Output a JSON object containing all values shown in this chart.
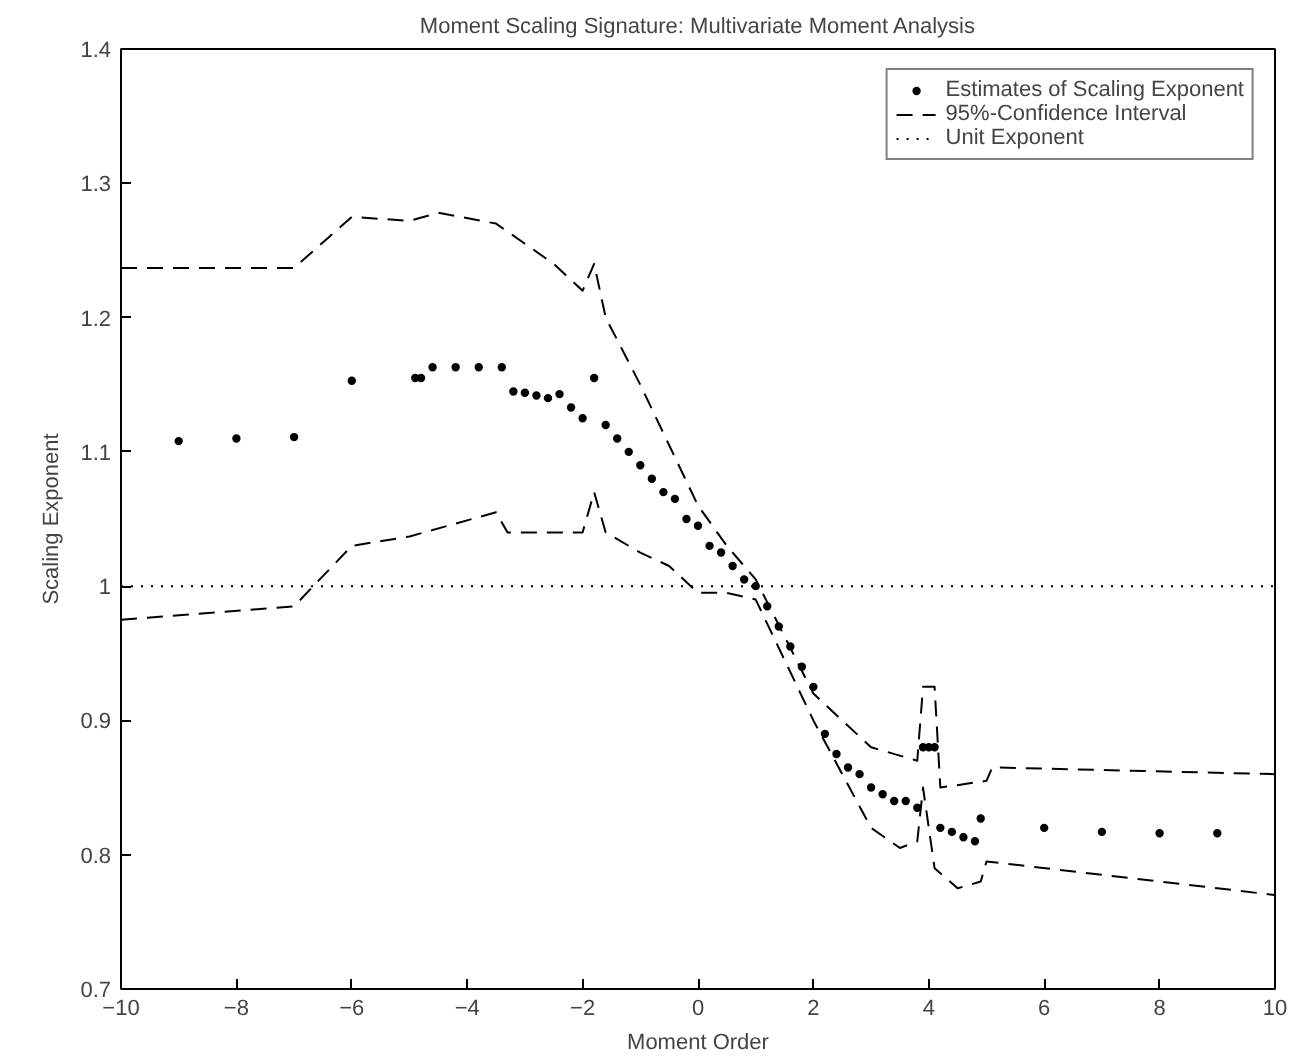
{
  "chart_data": {
    "type": "line",
    "title": "Moment Scaling Signature: Multivariate Moment Analysis",
    "xlabel": "Moment Order",
    "ylabel": "Scaling Exponent",
    "xlim": [
      -10,
      10
    ],
    "ylim": [
      0.7,
      1.4
    ],
    "xticks": [
      -10,
      -8,
      -6,
      -4,
      -2,
      0,
      2,
      4,
      6,
      8,
      10
    ],
    "yticks": [
      0.7,
      0.8,
      0.9,
      1,
      1.1,
      1.2,
      1.3,
      1.4
    ],
    "grid": false,
    "legend": "top right",
    "series": [
      {
        "name": "Estimates of Scaling Exponent",
        "type": "scatter",
        "marker": "circle",
        "color": "#000000",
        "x": [
          -9,
          -8,
          -7,
          -6,
          -4.9,
          -4.8,
          -4.6,
          -4.2,
          -3.8,
          -3.4,
          -3.2,
          -3.0,
          -2.8,
          -2.6,
          -2.4,
          -2.2,
          -2.0,
          -1.8,
          -1.6,
          -1.4,
          -1.2,
          -1.0,
          -0.8,
          -0.6,
          -0.4,
          -0.2,
          0,
          0.2,
          0.4,
          0.6,
          0.8,
          1.0,
          1.2,
          1.4,
          1.6,
          1.8,
          2.0,
          2.2,
          2.4,
          2.6,
          2.8,
          3.0,
          3.2,
          3.4,
          3.6,
          3.8,
          3.9,
          4.0,
          4.1,
          4.2,
          4.4,
          4.6,
          4.8,
          4.9,
          6,
          7,
          8,
          9
        ],
        "values": [
          1.108,
          1.11,
          1.111,
          1.153,
          1.155,
          1.155,
          1.163,
          1.163,
          1.163,
          1.163,
          1.145,
          1.144,
          1.142,
          1.14,
          1.143,
          1.133,
          1.125,
          1.155,
          1.12,
          1.11,
          1.1,
          1.09,
          1.08,
          1.07,
          1.065,
          1.05,
          1.045,
          1.03,
          1.025,
          1.015,
          1.005,
          1.0,
          0.985,
          0.97,
          0.955,
          0.94,
          0.925,
          0.89,
          0.875,
          0.865,
          0.86,
          0.85,
          0.845,
          0.84,
          0.84,
          0.835,
          0.88,
          0.88,
          0.88,
          0.82,
          0.817,
          0.813,
          0.81,
          0.827,
          0.82,
          0.817,
          0.816,
          0.816
        ]
      },
      {
        "name": "95%-Confidence Interval",
        "line_style": "dashed",
        "color": "#000000",
        "x": [
          -10,
          -7,
          -6,
          -5,
          -4.5,
          -3.5,
          -3,
          -2.5,
          -2,
          -1.8,
          -1.6,
          -1,
          0,
          0.5,
          1,
          2,
          3,
          3.8,
          3.9,
          4.1,
          4.2,
          5,
          5.1,
          10
        ],
        "values": [
          1.237,
          1.237,
          1.275,
          1.272,
          1.278,
          1.27,
          1.255,
          1.24,
          1.22,
          1.24,
          1.2,
          1.15,
          1.06,
          1.03,
          1.005,
          0.92,
          0.88,
          0.87,
          0.925,
          0.925,
          0.85,
          0.855,
          0.865,
          0.86
        ]
      },
      {
        "type": "line",
        "line_style": "dashed",
        "color": "#000000",
        "x": [
          -10,
          -7,
          -6,
          -5,
          -3.5,
          -3.3,
          -2,
          -1.8,
          -1.6,
          -1,
          -0.5,
          0,
          0.5,
          1,
          2,
          3,
          3.5,
          3.8,
          3.9,
          4.1,
          4.5,
          4.9,
          5,
          10
        ],
        "values": [
          0.975,
          0.985,
          1.03,
          1.037,
          1.055,
          1.04,
          1.04,
          1.07,
          1.04,
          1.025,
          1.015,
          0.995,
          0.995,
          0.99,
          0.9,
          0.82,
          0.805,
          0.81,
          0.85,
          0.79,
          0.775,
          0.78,
          0.795,
          0.77
        ]
      },
      {
        "name": "Unit Exponent",
        "type": "line",
        "line_style": "dotted",
        "color": "#000000",
        "x": [
          -10,
          10
        ],
        "values": [
          1,
          1
        ]
      }
    ]
  }
}
